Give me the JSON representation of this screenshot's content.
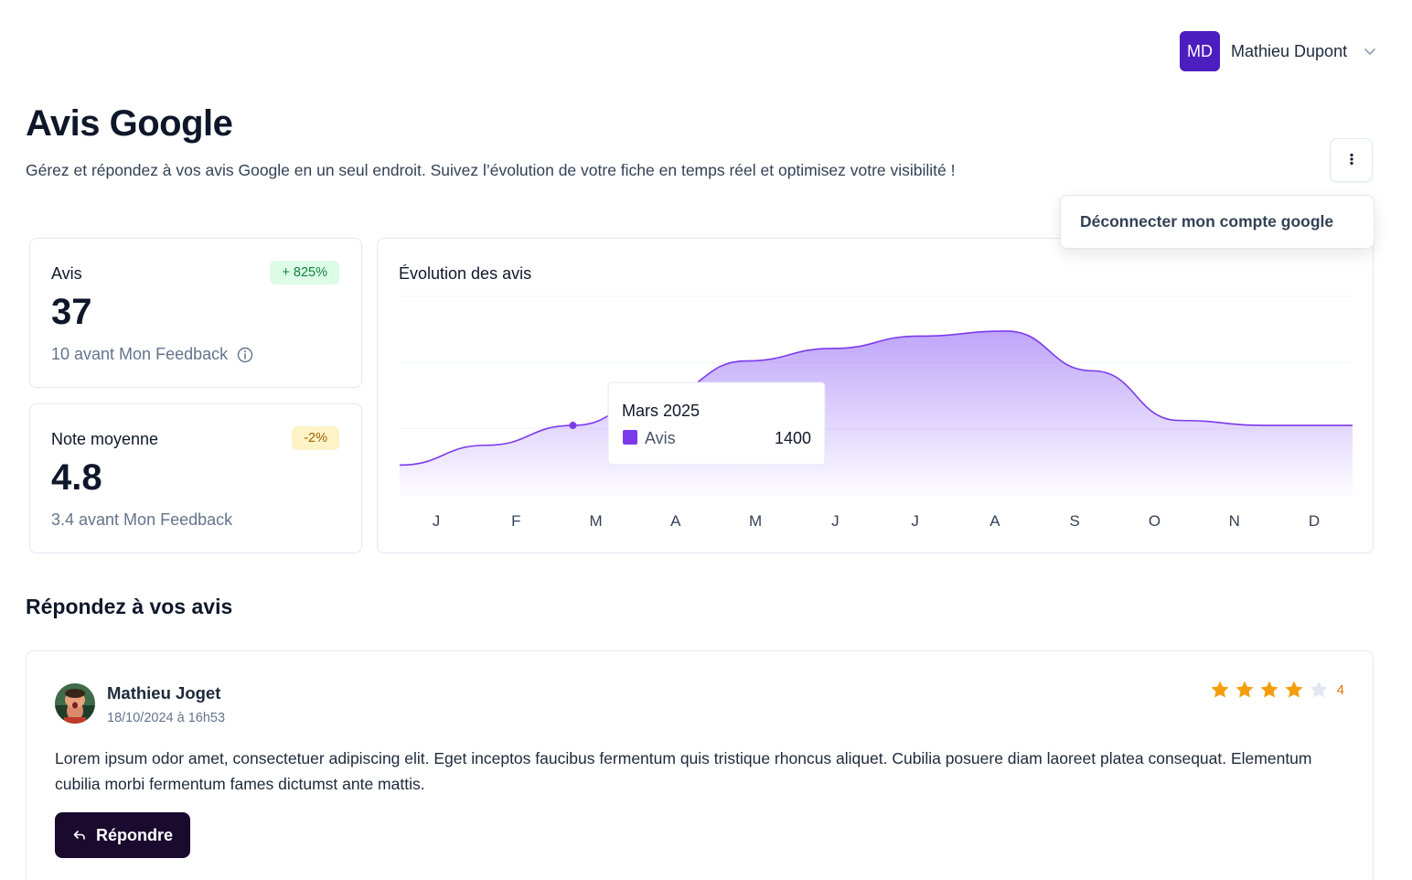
{
  "user": {
    "initials": "MD",
    "name": "Mathieu Dupont",
    "avatar_color": "#4c1dbf"
  },
  "header": {
    "title": "Avis Google",
    "subtitle": "Gérez et répondez à vos avis Google en un seul endroit. Suivez l’évolution de votre fiche en temps réel et optimisez votre visibilité !"
  },
  "menu": {
    "disconnect_label": "Déconnecter mon compte google"
  },
  "stats": [
    {
      "label": "Avis",
      "value": "37",
      "badge": "+ 825%",
      "badge_tone": "positive",
      "footnote": "10 avant Mon Feedback",
      "has_info_icon": true
    },
    {
      "label": "Note moyenne",
      "value": "4.8",
      "badge": "-2%",
      "badge_tone": "warning",
      "footnote": "3.4 avant Mon Feedback",
      "has_info_icon": false
    }
  ],
  "chart": {
    "title": "Évolution des avis",
    "tooltip": {
      "title": "Mars 2025",
      "series": "Avis",
      "value": "1400"
    }
  },
  "chart_data": {
    "type": "area",
    "title": "Évolution des avis",
    "categories": [
      "J",
      "F",
      "M",
      "A",
      "M",
      "J",
      "J",
      "A",
      "S",
      "O",
      "N",
      "D"
    ],
    "series": [
      {
        "name": "Avis",
        "values": [
          600,
          1000,
          1400,
          2000,
          2700,
          2950,
          3200,
          3300,
          2500,
          1500,
          1400,
          1400
        ]
      }
    ],
    "ylim": [
      0,
      4000
    ],
    "grid": true,
    "legend": "tooltip",
    "color": "#7c3aed",
    "highlight_index": 2
  },
  "reviews_section": {
    "title": "Répondez à vos avis"
  },
  "review": {
    "author": "Mathieu Joget",
    "date": "18/10/2024 à 16h53",
    "rating": 4,
    "rating_label": "4",
    "max_rating": 5,
    "text": "Lorem ipsum odor amet, consectetuer adipiscing elit. Eget inceptos faucibus fermentum quis tristique rhoncus aliquet. Cubilia posuere diam laoreet platea consequat. Elementum cubilia morbi fermentum fames dictumst ante mattis.",
    "reply_label": "Répondre"
  },
  "colors": {
    "star": "#f59e0b",
    "star_empty": "#e2e8f0",
    "primary_button": "#1a0b2e"
  }
}
